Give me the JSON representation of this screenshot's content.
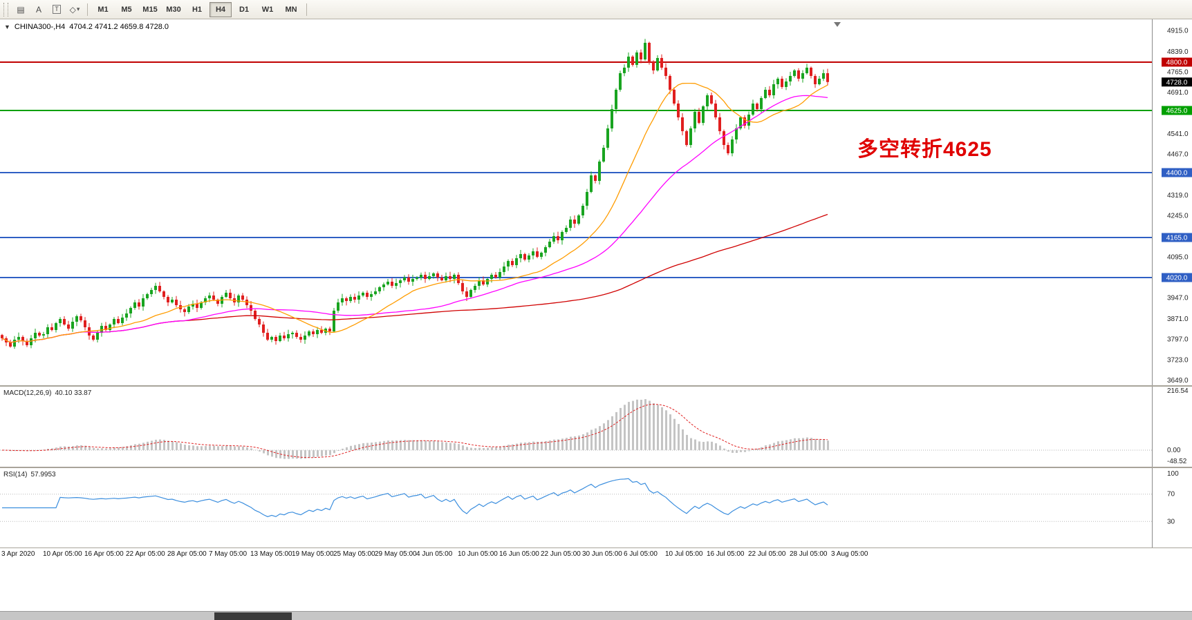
{
  "toolbar": {
    "icons": [
      {
        "name": "new-chart-icon",
        "glyph": "▤"
      },
      {
        "name": "text-label-icon",
        "glyph": "A"
      },
      {
        "name": "text-box-icon",
        "glyph": "T"
      },
      {
        "name": "drawing-tools-icon",
        "glyph": "◇"
      },
      {
        "name": "drawing-tools-caret",
        "glyph": "▾"
      }
    ],
    "timeframes": [
      "M1",
      "M5",
      "M15",
      "M30",
      "H1",
      "H4",
      "D1",
      "W1",
      "MN"
    ],
    "active": "H4"
  },
  "chart": {
    "symbol_period": "CHINA300-,H4",
    "ohlc_text": "4704.2 4741.2 4659.8 4728.0"
  },
  "chart_data": {
    "type": "candlestick",
    "symbol": "CHINA300-",
    "timeframe": "H4",
    "current_ohlc": {
      "open": 4704.2,
      "high": 4741.2,
      "low": 4659.8,
      "close": 4728.0
    },
    "ylim": [
      3630,
      4955
    ],
    "y_ticks": [
      "4915.0",
      "4839.0",
      "4765.0",
      "4691.0",
      "4541.0",
      "4467.0",
      "4319.0",
      "4245.0",
      "4095.0",
      "3947.0",
      "3871.0",
      "3797.0",
      "3723.0",
      "3649.0"
    ],
    "x_labels": [
      "3 Apr 2020",
      "10 Apr 05:00",
      "16 Apr 05:00",
      "22 Apr 05:00",
      "28 Apr 05:00",
      "7 May 05:00",
      "13 May 05:00",
      "19 May 05:00",
      "25 May 05:00",
      "29 May 05:00",
      "4 Jun 05:00",
      "10 Jun 05:00",
      "16 Jun 05:00",
      "22 Jun 05:00",
      "30 Jun 05:00",
      "6 Jul 05:00",
      "10 Jul 05:00",
      "16 Jul 05:00",
      "22 Jul 05:00",
      "28 Jul 05:00",
      "3 Aug 05:00"
    ],
    "closes": [
      3800,
      3785,
      3770,
      3795,
      3805,
      3790,
      3775,
      3800,
      3820,
      3810,
      3815,
      3840,
      3830,
      3855,
      3870,
      3850,
      3835,
      3860,
      3880,
      3865,
      3840,
      3810,
      3795,
      3820,
      3845,
      3830,
      3850,
      3870,
      3855,
      3875,
      3890,
      3910,
      3930,
      3915,
      3945,
      3960,
      3975,
      3990,
      3970,
      3950,
      3930,
      3940,
      3920,
      3905,
      3895,
      3915,
      3925,
      3910,
      3930,
      3945,
      3955,
      3940,
      3925,
      3950,
      3965,
      3945,
      3930,
      3955,
      3940,
      3920,
      3900,
      3870,
      3850,
      3820,
      3795,
      3805,
      3790,
      3810,
      3800,
      3815,
      3820,
      3805,
      3795,
      3810,
      3825,
      3815,
      3830,
      3820,
      3835,
      3825,
      3900,
      3930,
      3945,
      3935,
      3950,
      3940,
      3955,
      3965,
      3950,
      3960,
      3970,
      3985,
      3995,
      4005,
      3990,
      4000,
      4010,
      4020,
      4005,
      4015,
      4020,
      4030,
      4015,
      4025,
      4035,
      4020,
      4010,
      4025,
      4015,
      4030,
      4000,
      3970,
      3950,
      3975,
      3990,
      4010,
      3995,
      4015,
      4030,
      4020,
      4040,
      4060,
      4080,
      4065,
      4090,
      4105,
      4085,
      4100,
      4115,
      4095,
      4110,
      4130,
      4150,
      4170,
      4155,
      4185,
      4200,
      4230,
      4215,
      4245,
      4280,
      4330,
      4390,
      4370,
      4440,
      4490,
      4560,
      4630,
      4700,
      4760,
      4780,
      4820,
      4790,
      4835,
      4810,
      4870,
      4800,
      4770,
      4815,
      4780,
      4750,
      4700,
      4650,
      4600,
      4550,
      4500,
      4560,
      4620,
      4580,
      4640,
      4680,
      4650,
      4600,
      4550,
      4500,
      4470,
      4520,
      4560,
      4600,
      4570,
      4610,
      4650,
      4630,
      4670,
      4700,
      4680,
      4720,
      4740,
      4710,
      4730,
      4750,
      4770,
      4740,
      4760,
      4780,
      4750,
      4720,
      4740,
      4760,
      4728
    ],
    "candle_colors": {
      "up": "#19a420",
      "down": "#e01f1f"
    },
    "horizontal_levels": [
      {
        "value": 4800.0,
        "label": "4800.0",
        "color": "#c00000"
      },
      {
        "value": 4625.0,
        "label": "4625.0",
        "color": "#00a000"
      },
      {
        "value": 4400.0,
        "label": "4400.0",
        "color": "#2f5fc4"
      },
      {
        "value": 4165.0,
        "label": "4165.0",
        "color": "#2f5fc4"
      },
      {
        "value": 4020.0,
        "label": "4020.0",
        "color": "#2f5fc4"
      }
    ],
    "current_price_marker": {
      "value": 4728.0,
      "label": "4728.0",
      "bg": "#000000",
      "fg": "#ffffff"
    },
    "moving_averages": [
      {
        "name": "ma-fast",
        "period": 20,
        "color": "#ff9c00"
      },
      {
        "name": "ma-mid",
        "period": 45,
        "color": "#ff00ff"
      },
      {
        "name": "ma-slow",
        "period": 150,
        "color": "#d00000"
      }
    ],
    "indicators": [
      {
        "type": "MACD",
        "label": "MACD(12,26,9)",
        "values_text": "40.10 33.87",
        "params": [
          12,
          26,
          9
        ],
        "y_ticks": [
          "216.54",
          "0.00",
          "-48.52"
        ],
        "ylim": [
          -60,
          230
        ],
        "histogram_color": "#c4c4c4",
        "signal_color": "#e02020"
      },
      {
        "type": "RSI",
        "label": "RSI(14)",
        "value_text": "57.9953",
        "period": 14,
        "levels": [
          70,
          30
        ],
        "y_ticks": [
          "100",
          "70",
          "30"
        ],
        "line_color": "#3b8ede"
      }
    ],
    "annotation": {
      "text": "多空转折4625",
      "color": "#e00000"
    }
  },
  "scrollbar": {
    "thumb_left": 310,
    "thumb_width": 112
  }
}
